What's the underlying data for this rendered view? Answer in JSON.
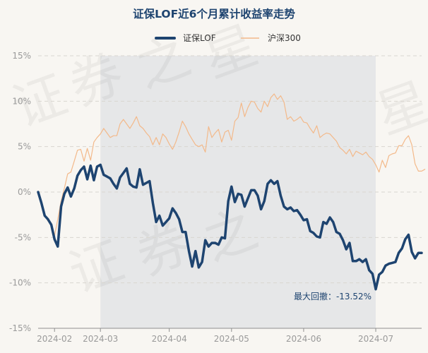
{
  "chart_data": {
    "type": "line",
    "title": "证保LOF近6个月累计收益率走势",
    "legend": {
      "position": "top-center"
    },
    "series": [
      {
        "name": "证保LOF",
        "color": "#1e4470",
        "values": [
          0.0,
          -1.2,
          -2.6,
          -3.0,
          -3.6,
          -5.2,
          -6.0,
          -1.6,
          -0.2,
          0.5,
          -0.5,
          0.4,
          1.8,
          2.4,
          2.8,
          1.4,
          2.9,
          1.3,
          2.8,
          3.0,
          1.9,
          1.7,
          1.5,
          0.9,
          0.4,
          1.6,
          2.1,
          2.6,
          0.9,
          0.6,
          0.5,
          2.5,
          0.8,
          1.0,
          1.2,
          -1.2,
          -3.3,
          -2.6,
          -3.7,
          -3.3,
          -2.9,
          -1.8,
          -2.3,
          -3.0,
          -4.4,
          -4.4,
          -6.5,
          -8.2,
          -6.5,
          -8.3,
          -7.7,
          -5.3,
          -6.0,
          -5.6,
          -5.6,
          -5.8,
          -5.0,
          -5.1,
          -1.0,
          0.6,
          -1.1,
          -0.2,
          -0.3,
          -1.6,
          -0.7,
          0.2,
          0.2,
          -0.4,
          -1.9,
          -1.0,
          0.9,
          1.3,
          0.9,
          1.2,
          -0.4,
          -1.6,
          -1.9,
          -1.7,
          -2.1,
          -2.0,
          -2.5,
          -3.1,
          -3.0,
          -4.3,
          -4.5,
          -4.9,
          -5.0,
          -3.3,
          -3.5,
          -2.8,
          -3.3,
          -4.4,
          -4.6,
          -5.3,
          -6.3,
          -5.6,
          -7.6,
          -7.6,
          -7.4,
          -7.7,
          -7.4,
          -8.6,
          -9.0,
          -10.7,
          -9.1,
          -8.8,
          -8.1,
          -7.9,
          -7.8,
          -7.7,
          -6.7,
          -6.2,
          -5.2,
          -4.7,
          -6.6,
          -7.3,
          -6.7,
          -6.7
        ]
      },
      {
        "name": "沪深300",
        "color": "#f3b98a",
        "values": [
          0.0,
          -1.2,
          -2.5,
          -3.2,
          -3.4,
          -4.8,
          -3.0,
          -1.0,
          0.4,
          2.0,
          2.2,
          3.4,
          4.6,
          4.7,
          3.4,
          4.8,
          3.5,
          5.5,
          6.0,
          6.4,
          7.0,
          6.5,
          6.0,
          6.2,
          6.2,
          7.5,
          8.0,
          7.5,
          7.0,
          7.6,
          8.3,
          7.3,
          7.0,
          6.5,
          6.1,
          5.2,
          6.0,
          5.2,
          6.4,
          6.0,
          5.3,
          4.7,
          5.5,
          6.6,
          7.8,
          7.2,
          6.4,
          5.8,
          5.2,
          5.0,
          5.2,
          4.4,
          7.2,
          6.0,
          6.5,
          6.9,
          5.5,
          6.6,
          6.8,
          5.7,
          7.8,
          8.2,
          9.8,
          8.3,
          9.3,
          10.0,
          9.9,
          9.2,
          8.8,
          10.0,
          9.4,
          10.4,
          10.8,
          10.2,
          10.6,
          9.9,
          8.0,
          8.3,
          7.8,
          8.0,
          8.3,
          7.7,
          7.6,
          7.0,
          6.5,
          7.3,
          6.0,
          6.3,
          6.5,
          6.4,
          6.0,
          5.6,
          4.9,
          4.6,
          4.2,
          4.7,
          3.9,
          4.5,
          4.3,
          4.1,
          4.4,
          3.9,
          3.6,
          3.0,
          2.2,
          3.5,
          2.7,
          4.0,
          4.2,
          4.3,
          5.1,
          5.1,
          5.8,
          6.2,
          5.2,
          3.1,
          2.3,
          2.3,
          2.5
        ]
      }
    ],
    "xlabel": "",
    "ylabel": "",
    "x_ticks": [
      "2024-02",
      "2024-03",
      "2024-04",
      "2024-05",
      "2024-06",
      "2024-07"
    ],
    "y_ticks": [
      "15%",
      "10%",
      "5%",
      "0%",
      "-5%",
      "-10%",
      "-15%"
    ],
    "y_tick_values": [
      15,
      10,
      5,
      0,
      -5,
      -10,
      -15
    ],
    "ylim": [
      -15,
      15
    ],
    "x_tick_index": [
      5,
      19,
      40,
      59,
      81,
      103
    ],
    "max_drawdown": {
      "label": "最大回撤：-13.52%",
      "start_index": 19,
      "end_index": 103,
      "shaded": true
    },
    "grid": "horizontal-dashed",
    "watermark": [
      "证",
      "券",
      "之",
      "星"
    ]
  }
}
